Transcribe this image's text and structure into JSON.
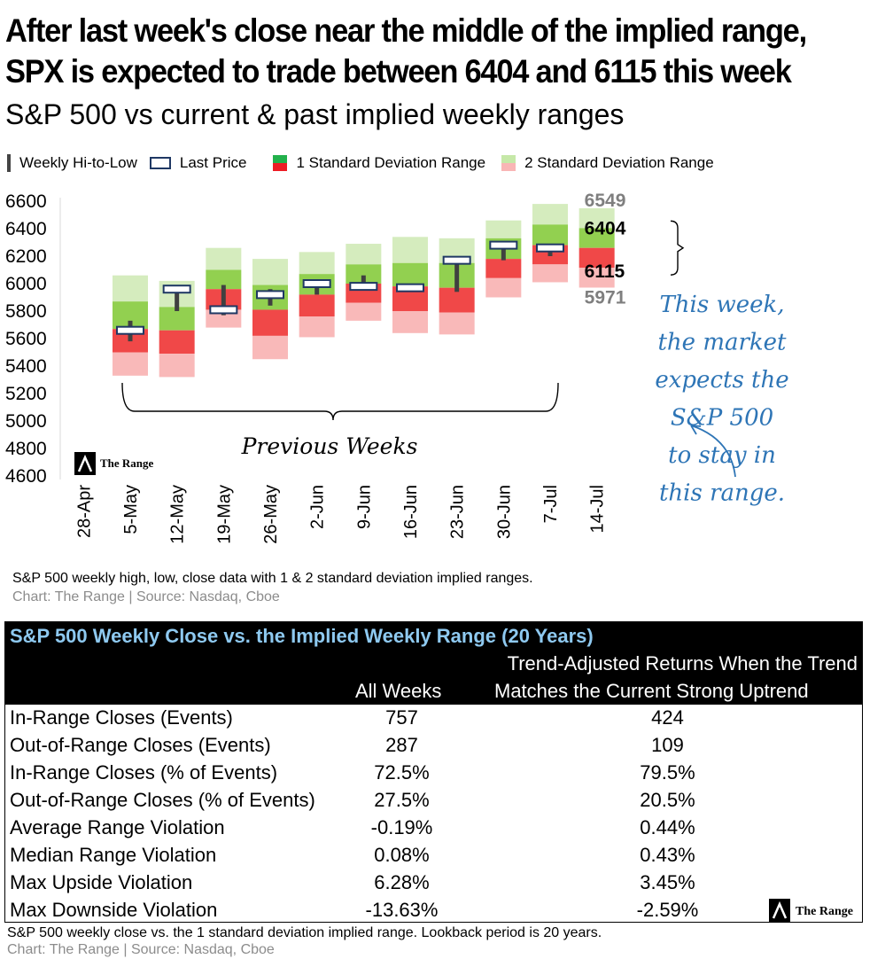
{
  "headline": {
    "line1": "After last week's close near the middle of the implied range,",
    "line2": "SPX is expected to trade between  6404 and 6115 this week"
  },
  "subtitle": "S&P 500 vs current & past implied weekly ranges",
  "legend": {
    "hilo": "Weekly Hi-to-Low",
    "last": "Last Price",
    "sd1": "1 Standard Deviation Range",
    "sd2": "2 Standard Deviation Range"
  },
  "colors": {
    "sd1_up": "#92d050",
    "sd1_dn": "#f04848",
    "sd2_up": "#d5ecbe",
    "sd2_dn": "#f9b9b9",
    "hilo": "#404040",
    "last_border": "#1f3864",
    "annotation": "#2e75b6"
  },
  "chart_data": {
    "type": "range",
    "categories": [
      "28-Apr",
      "5-May",
      "12-May",
      "19-May",
      "26-May",
      "2-Jun",
      "9-Jun",
      "16-Jun",
      "23-Jun",
      "30-Jun",
      "7-Jul",
      "14-Jul"
    ],
    "ylim": [
      4600,
      6600
    ],
    "yticks": [
      4600,
      4800,
      5000,
      5200,
      5400,
      5600,
      5800,
      6000,
      6200,
      6400,
      6600
    ],
    "weeks": [
      {
        "label": "5-May",
        "sd2_high": 6060,
        "sd1_high": 5870,
        "mid": 5670,
        "sd1_low": 5500,
        "sd2_low": 5330,
        "high": 5730,
        "low": 5580,
        "close": 5660
      },
      {
        "label": "12-May",
        "sd2_high": 6020,
        "sd1_high": 5830,
        "mid": 5660,
        "sd1_low": 5490,
        "sd2_low": 5320,
        "high": 5970,
        "low": 5800,
        "close": 5960
      },
      {
        "label": "19-May",
        "sd2_high": 6260,
        "sd1_high": 6100,
        "mid": 5960,
        "sd1_low": 5810,
        "sd2_low": 5680,
        "high": 5990,
        "low": 5770,
        "close": 5810
      },
      {
        "label": "26-May",
        "sd2_high": 6180,
        "sd1_high": 5990,
        "mid": 5810,
        "sd1_low": 5620,
        "sd2_low": 5450,
        "high": 5960,
        "low": 5840,
        "close": 5920
      },
      {
        "label": "2-Jun",
        "sd2_high": 6230,
        "sd1_high": 6070,
        "mid": 5920,
        "sd1_low": 5760,
        "sd2_low": 5610,
        "high": 6020,
        "low": 5920,
        "close": 6000
      },
      {
        "label": "9-Jun",
        "sd2_high": 6290,
        "sd1_high": 6140,
        "mid": 6000,
        "sd1_low": 5860,
        "sd2_low": 5730,
        "high": 6060,
        "low": 5970,
        "close": 5980
      },
      {
        "label": "16-Jun",
        "sd2_high": 6340,
        "sd1_high": 6150,
        "mid": 5980,
        "sd1_low": 5800,
        "sd2_low": 5640,
        "high": 6000,
        "low": 5960,
        "close": 5970
      },
      {
        "label": "23-Jun",
        "sd2_high": 6330,
        "sd1_high": 6150,
        "mid": 5970,
        "sd1_low": 5790,
        "sd2_low": 5630,
        "high": 6190,
        "low": 5940,
        "close": 6170
      },
      {
        "label": "30-Jun",
        "sd2_high": 6460,
        "sd1_high": 6330,
        "mid": 6180,
        "sd1_low": 6040,
        "sd2_low": 5900,
        "high": 6300,
        "low": 6170,
        "close": 6280
      },
      {
        "label": "7-Jul",
        "sd2_high": 6580,
        "sd1_high": 6430,
        "mid": 6280,
        "sd1_low": 6140,
        "sd2_low": 6010,
        "high": 6290,
        "low": 6200,
        "close": 6260
      },
      {
        "label": "14-Jul",
        "sd2_high": 6549,
        "sd1_high": 6404,
        "mid": 6260,
        "sd1_low": 6115,
        "sd2_low": 5971
      }
    ],
    "current_labels": {
      "sd2_high": "6549",
      "sd1_high": "6404",
      "sd1_low": "6115",
      "sd2_low": "5971"
    },
    "annotations": {
      "previous_weeks": "Previous Weeks",
      "this_week": [
        "This week,",
        "the market",
        "expects the",
        "S&P 500",
        "to stay in",
        "this range."
      ]
    },
    "brand": "The Range",
    "grid": false
  },
  "notes": {
    "chart_caption": "S&P 500 weekly high, low, close data with  1 & 2 standard deviation implied ranges.",
    "chart_source": "Chart: The Range | Source: Nasdaq, Cboe",
    "table_caption": "S&P 500 weekly close vs. the 1 standard deviation implied range. Lookback period is 20 years.",
    "table_source": "Chart: The Range | Source: Nasdaq, Cboe"
  },
  "table": {
    "title": "S&P 500 Weekly Close vs. the Implied Weekly Range (20 Years)",
    "col1": "All Weeks",
    "col2_line1": "Trend-Adjusted Returns When the Trend",
    "col2_line2": "Matches the Current Strong Uptrend",
    "rows": [
      {
        "label": "In-Range Closes (Events)",
        "all": "757",
        "trend": "424"
      },
      {
        "label": "Out-of-Range Closes (Events)",
        "all": "287",
        "trend": "109"
      },
      {
        "label": "In-Range Closes (% of Events)",
        "all": "72.5%",
        "trend": "79.5%"
      },
      {
        "label": "Out-of-Range Closes (% of Events)",
        "all": "27.5%",
        "trend": "20.5%"
      },
      {
        "label": "Average Range Violation",
        "all": "-0.19%",
        "trend": "0.44%"
      },
      {
        "label": "Median Range Violation",
        "all": "0.08%",
        "trend": "0.43%"
      },
      {
        "label": "Max Upside Violation",
        "all": "6.28%",
        "trend": "3.45%"
      },
      {
        "label": "Max Downside Violation",
        "all": "-13.63%",
        "trend": "-2.59%"
      }
    ],
    "brand": "The Range"
  }
}
